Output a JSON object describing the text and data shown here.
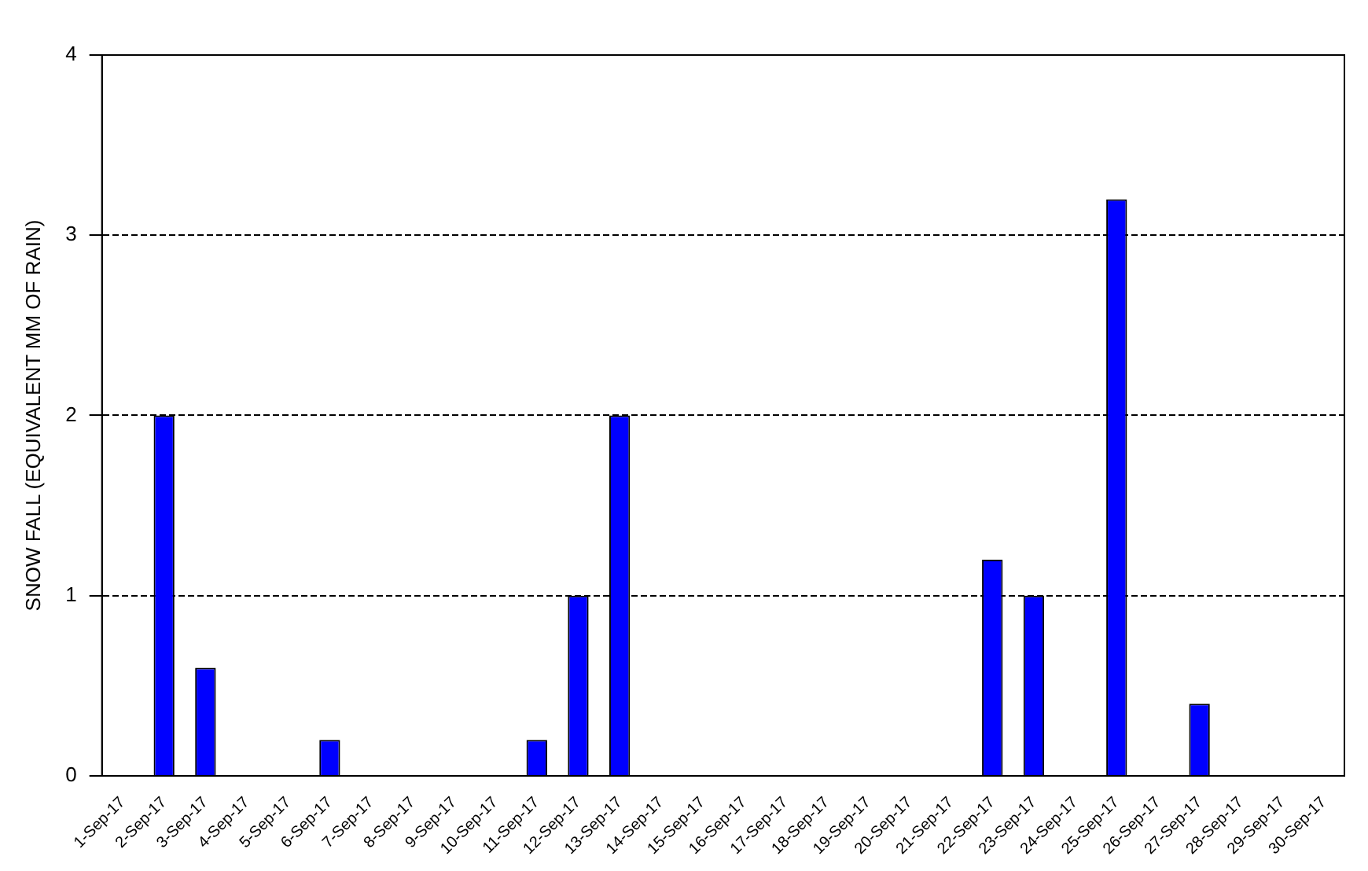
{
  "chart_data": {
    "type": "bar",
    "ylabel": "SNOW FALL (EQUIVALENT MM OF RAIN)",
    "categories": [
      "1-Sep-17",
      "2-Sep-17",
      "3-Sep-17",
      "4-Sep-17",
      "5-Sep-17",
      "6-Sep-17",
      "7-Sep-17",
      "8-Sep-17",
      "9-Sep-17",
      "10-Sep-17",
      "11-Sep-17",
      "12-Sep-17",
      "13-Sep-17",
      "14-Sep-17",
      "15-Sep-17",
      "16-Sep-17",
      "17-Sep-17",
      "18-Sep-17",
      "19-Sep-17",
      "20-Sep-17",
      "21-Sep-17",
      "22-Sep-17",
      "23-Sep-17",
      "24-Sep-17",
      "25-Sep-17",
      "26-Sep-17",
      "27-Sep-17",
      "28-Sep-17",
      "29-Sep-17",
      "30-Sep-17"
    ],
    "values": [
      0,
      2,
      0.6,
      0,
      0,
      0.2,
      0,
      0,
      0,
      0,
      0.2,
      1,
      2,
      0,
      0,
      0,
      0,
      0,
      0,
      0,
      0,
      1.2,
      1,
      0,
      3.2,
      0,
      0.4,
      0,
      0,
      0
    ],
    "color": "#0000ff",
    "ylim": [
      0,
      4
    ],
    "yticks": [
      0,
      1,
      2,
      3,
      4
    ],
    "grid": "y",
    "line_style": "dashed"
  }
}
